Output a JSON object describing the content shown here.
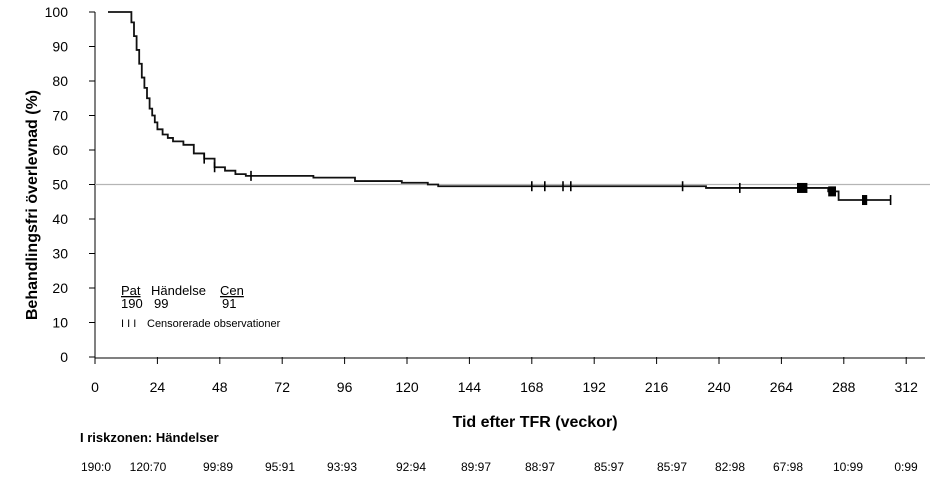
{
  "chart_data": {
    "type": "line",
    "xlabel": "Tid efter TFR (veckor)",
    "ylabel": "Behandlingsfri överlevnad (%)",
    "xlim": [
      0,
      324
    ],
    "ylim": [
      0,
      100
    ],
    "xticks": [
      0,
      24,
      48,
      72,
      96,
      120,
      144,
      168,
      192,
      216,
      240,
      264,
      288,
      312
    ],
    "yticks": [
      0,
      10,
      20,
      30,
      40,
      50,
      60,
      70,
      80,
      90,
      100
    ],
    "reference_line_y": 50,
    "series": [
      {
        "points": [
          [
            5,
            100
          ],
          [
            13,
            100
          ],
          [
            14,
            97
          ],
          [
            15,
            93
          ],
          [
            16,
            89
          ],
          [
            17,
            85
          ],
          [
            18,
            81
          ],
          [
            19,
            78
          ],
          [
            20,
            75
          ],
          [
            21,
            72
          ],
          [
            22,
            70
          ],
          [
            23,
            68
          ],
          [
            24,
            66
          ],
          [
            26,
            64.5
          ],
          [
            28,
            63.5
          ],
          [
            30,
            62.5
          ],
          [
            34,
            61.5
          ],
          [
            38,
            59
          ],
          [
            42,
            57.5
          ],
          [
            46,
            55
          ],
          [
            50,
            54
          ],
          [
            54,
            53
          ],
          [
            58,
            52.5
          ],
          [
            66,
            52.5
          ],
          [
            76,
            52.5
          ],
          [
            84,
            52
          ],
          [
            100,
            51
          ],
          [
            118,
            50.5
          ],
          [
            128,
            50
          ],
          [
            132,
            49.5
          ],
          [
            200,
            49.5
          ],
          [
            235,
            49
          ],
          [
            270,
            49
          ],
          [
            282,
            48
          ],
          [
            286,
            45.5
          ],
          [
            306,
            45.5
          ]
        ]
      }
    ],
    "censor_marks_x": [
      42,
      46,
      60,
      168,
      173,
      180,
      183,
      226,
      248
    ],
    "censor_blocks": [
      [
        270,
        49,
        274
      ],
      [
        282,
        48,
        285
      ],
      [
        295,
        45.5,
        297
      ]
    ],
    "legend": {
      "headers": [
        "Pat",
        "Händelse",
        "Cen"
      ],
      "values": [
        "190",
        "99",
        "91"
      ],
      "censor_marker": "I I I",
      "censor_label": "Censorerade observationer"
    },
    "risk_table": {
      "title": "I riskzonen: Händelser",
      "values": [
        "190:0",
        "120:70",
        "99:89",
        "95:91",
        "93:93",
        "92:94",
        "89:97",
        "88:97",
        "85:97",
        "85:97",
        "82:98",
        "67:98",
        "10:99",
        "0:99"
      ]
    }
  }
}
